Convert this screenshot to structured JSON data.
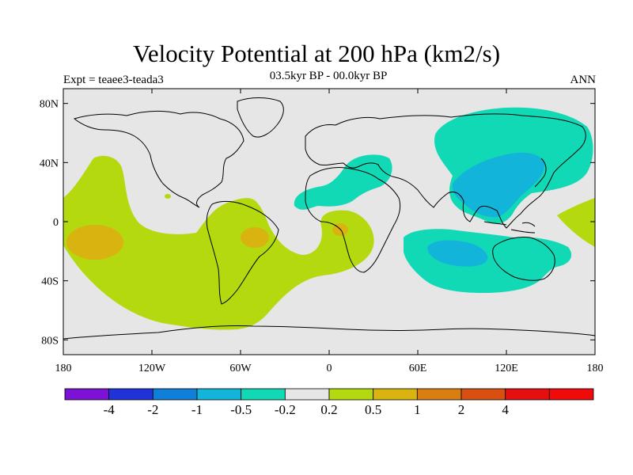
{
  "title": "Velocity Potential at 200 hPa (km2/s)",
  "subtitle": "03.5kyr BP - 00.0kyr BP",
  "experiment": "Expt = teaee3-teada3",
  "season": "ANN",
  "map_data": {
    "type": "contour-map",
    "projection": "cylindrical-equidistant",
    "lon_range": [
      -180,
      180
    ],
    "lat_range": [
      -90,
      90
    ],
    "background_color": "#e6e6e6",
    "lat_ticks": [
      {
        "lat": 80,
        "label": "80N"
      },
      {
        "lat": 40,
        "label": "40N"
      },
      {
        "lat": 0,
        "label": "0"
      },
      {
        "lat": -40,
        "label": "40S"
      },
      {
        "lat": -80,
        "label": "80S"
      }
    ],
    "lon_ticks": [
      {
        "lon": -180,
        "label": "180"
      },
      {
        "lon": -120,
        "label": "120W"
      },
      {
        "lon": -60,
        "label": "60W"
      },
      {
        "lon": 0,
        "label": "0"
      },
      {
        "lon": 60,
        "label": "60E"
      },
      {
        "lon": 120,
        "label": "120E"
      },
      {
        "lon": 180,
        "label": "180"
      }
    ],
    "colorbar": {
      "colors": [
        "#7b12d6",
        "#1f33d9",
        "#0f7fd9",
        "#12b5d9",
        "#12d9b5",
        "#e6e6e6",
        "#b5d90f",
        "#d9b30f",
        "#d97f12",
        "#d94f12",
        "#e60f0f",
        "#f00a0a"
      ],
      "labels": [
        "-4",
        "-2",
        "-1",
        "-0.5",
        "-0.2",
        "0.2",
        "0.5",
        "1",
        "2",
        "4"
      ]
    }
  }
}
